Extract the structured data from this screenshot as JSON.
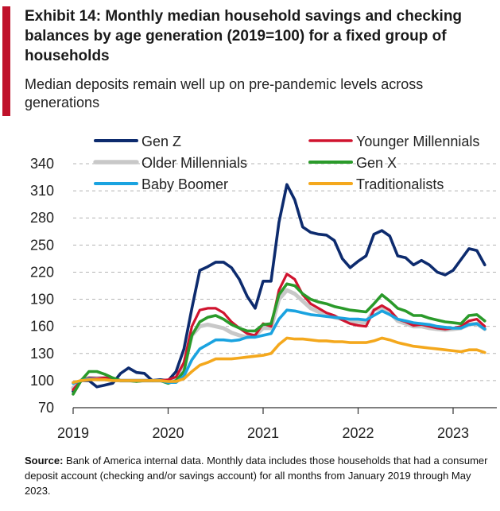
{
  "title": "Exhibit 14: Monthly median household savings and checking balances by age generation (2019=100)  for a fixed group of households",
  "subtitle": "Median deposits remain well up on pre-pandemic levels across generations",
  "source": {
    "label": "Source:",
    "text": "Bank of America internal data. Monthly data includes those households  that had a consumer deposit account (checking and/or savings account) for all months from January 2019 through May 2023."
  },
  "chart_data": {
    "type": "line",
    "x_ticks": [
      "2019",
      "2020",
      "2021",
      "2022",
      "2023"
    ],
    "y_ticks": [
      70,
      100,
      130,
      160,
      190,
      220,
      250,
      280,
      310,
      340
    ],
    "ylim": [
      70,
      340
    ],
    "xlim": [
      "2019-01",
      "2023-05"
    ],
    "grid": "horizontal-dashed",
    "legend_position": "top",
    "series": [
      {
        "name": "Gen Z",
        "color": "#0d2b6e",
        "width": 3.6,
        "x": [
          "2019-01",
          "2019-02",
          "2019-03",
          "2019-04",
          "2019-05",
          "2019-06",
          "2019-07",
          "2019-08",
          "2019-09",
          "2019-10",
          "2019-11",
          "2019-12",
          "2020-01",
          "2020-02",
          "2020-03",
          "2020-04",
          "2020-05",
          "2020-06",
          "2020-07",
          "2020-08",
          "2020-09",
          "2020-10",
          "2020-11",
          "2020-12",
          "2021-01",
          "2021-02",
          "2021-03",
          "2021-04",
          "2021-05",
          "2021-06",
          "2021-07",
          "2021-08",
          "2021-09",
          "2021-10",
          "2021-11",
          "2021-12",
          "2022-01",
          "2022-02",
          "2022-03",
          "2022-04",
          "2022-05",
          "2022-06",
          "2022-07",
          "2022-08",
          "2022-09",
          "2022-10",
          "2022-11",
          "2022-12",
          "2023-01",
          "2023-02",
          "2023-03",
          "2023-04",
          "2023-05"
        ],
        "values": [
          88,
          100,
          100,
          93,
          95,
          97,
          108,
          114,
          109,
          108,
          100,
          101,
          100,
          110,
          135,
          180,
          222,
          226,
          231,
          231,
          225,
          212,
          193,
          180,
          210,
          210,
          275,
          317,
          300,
          270,
          264,
          262,
          261,
          255,
          235,
          225,
          232,
          238,
          262,
          266,
          260,
          238,
          236,
          228,
          233,
          228,
          220,
          217,
          222,
          234,
          246,
          244,
          228
        ]
      },
      {
        "name": "Younger Millennials",
        "color": "#d0142f",
        "width": 3.2,
        "x": [
          "2019-01",
          "2019-02",
          "2019-03",
          "2019-04",
          "2019-05",
          "2019-06",
          "2019-07",
          "2019-08",
          "2019-09",
          "2019-10",
          "2019-11",
          "2019-12",
          "2020-01",
          "2020-02",
          "2020-03",
          "2020-04",
          "2020-05",
          "2020-06",
          "2020-07",
          "2020-08",
          "2020-09",
          "2020-10",
          "2020-11",
          "2020-12",
          "2021-01",
          "2021-02",
          "2021-03",
          "2021-04",
          "2021-05",
          "2021-06",
          "2021-07",
          "2021-08",
          "2021-09",
          "2021-10",
          "2021-11",
          "2021-12",
          "2022-01",
          "2022-02",
          "2022-03",
          "2022-04",
          "2022-05",
          "2022-06",
          "2022-07",
          "2022-08",
          "2022-09",
          "2022-10",
          "2022-11",
          "2022-12",
          "2023-01",
          "2023-02",
          "2023-03",
          "2023-04",
          "2023-05"
        ],
        "values": [
          90,
          100,
          103,
          102,
          103,
          103,
          100,
          100,
          99,
          100,
          100,
          100,
          101,
          104,
          120,
          160,
          178,
          180,
          180,
          175,
          165,
          158,
          152,
          150,
          163,
          160,
          200,
          218,
          212,
          195,
          185,
          180,
          175,
          172,
          167,
          163,
          161,
          160,
          178,
          183,
          178,
          168,
          165,
          161,
          162,
          160,
          158,
          157,
          158,
          160,
          166,
          168,
          160
        ]
      },
      {
        "name": "Older Millennials",
        "color": "#c8c8c8",
        "width": 5,
        "x": [
          "2019-01",
          "2019-02",
          "2019-03",
          "2019-04",
          "2019-05",
          "2019-06",
          "2019-07",
          "2019-08",
          "2019-09",
          "2019-10",
          "2019-11",
          "2019-12",
          "2020-01",
          "2020-02",
          "2020-03",
          "2020-04",
          "2020-05",
          "2020-06",
          "2020-07",
          "2020-08",
          "2020-09",
          "2020-10",
          "2020-11",
          "2020-12",
          "2021-01",
          "2021-02",
          "2021-03",
          "2021-04",
          "2021-05",
          "2021-06",
          "2021-07",
          "2021-08",
          "2021-09",
          "2021-10",
          "2021-11",
          "2021-12",
          "2022-01",
          "2022-02",
          "2022-03",
          "2022-04",
          "2022-05",
          "2022-06",
          "2022-07",
          "2022-08",
          "2022-09",
          "2022-10",
          "2022-11",
          "2022-12",
          "2023-01",
          "2023-02",
          "2023-03",
          "2023-04",
          "2023-05"
        ],
        "values": [
          92,
          100,
          103,
          103,
          103,
          102,
          100,
          100,
          100,
          100,
          100,
          100,
          100,
          103,
          118,
          150,
          160,
          162,
          160,
          158,
          153,
          150,
          148,
          150,
          158,
          158,
          190,
          200,
          196,
          188,
          180,
          176,
          173,
          170,
          168,
          166,
          165,
          164,
          178,
          181,
          175,
          166,
          163,
          160,
          160,
          158,
          157,
          156,
          157,
          158,
          162,
          163,
          157
        ]
      },
      {
        "name": "Gen X",
        "color": "#2a9a2a",
        "width": 3.6,
        "x": [
          "2019-01",
          "2019-02",
          "2019-03",
          "2019-04",
          "2019-05",
          "2019-06",
          "2019-07",
          "2019-08",
          "2019-09",
          "2019-10",
          "2019-11",
          "2019-12",
          "2020-01",
          "2020-02",
          "2020-03",
          "2020-04",
          "2020-05",
          "2020-06",
          "2020-07",
          "2020-08",
          "2020-09",
          "2020-10",
          "2020-11",
          "2020-12",
          "2021-01",
          "2021-02",
          "2021-03",
          "2021-04",
          "2021-05",
          "2021-06",
          "2021-07",
          "2021-08",
          "2021-09",
          "2021-10",
          "2021-11",
          "2021-12",
          "2022-01",
          "2022-02",
          "2022-03",
          "2022-04",
          "2022-05",
          "2022-06",
          "2022-07",
          "2022-08",
          "2022-09",
          "2022-10",
          "2022-11",
          "2022-12",
          "2023-01",
          "2023-02",
          "2023-03",
          "2023-04",
          "2023-05"
        ],
        "values": [
          85,
          100,
          110,
          110,
          107,
          103,
          100,
          100,
          99,
          100,
          100,
          100,
          97,
          100,
          110,
          150,
          165,
          170,
          172,
          168,
          162,
          158,
          155,
          155,
          162,
          163,
          195,
          207,
          205,
          196,
          190,
          187,
          185,
          182,
          180,
          178,
          177,
          176,
          185,
          195,
          188,
          180,
          177,
          172,
          172,
          169,
          167,
          165,
          164,
          163,
          172,
          173,
          166
        ]
      },
      {
        "name": "Baby Boomer",
        "color": "#1aa3e0",
        "width": 3.6,
        "x": [
          "2019-01",
          "2019-02",
          "2019-03",
          "2019-04",
          "2019-05",
          "2019-06",
          "2019-07",
          "2019-08",
          "2019-09",
          "2019-10",
          "2019-11",
          "2019-12",
          "2020-01",
          "2020-02",
          "2020-03",
          "2020-04",
          "2020-05",
          "2020-06",
          "2020-07",
          "2020-08",
          "2020-09",
          "2020-10",
          "2020-11",
          "2020-12",
          "2021-01",
          "2021-02",
          "2021-03",
          "2021-04",
          "2021-05",
          "2021-06",
          "2021-07",
          "2021-08",
          "2021-09",
          "2021-10",
          "2021-11",
          "2021-12",
          "2022-01",
          "2022-02",
          "2022-03",
          "2022-04",
          "2022-05",
          "2022-06",
          "2022-07",
          "2022-08",
          "2022-09",
          "2022-10",
          "2022-11",
          "2022-12",
          "2023-01",
          "2023-02",
          "2023-03",
          "2023-04",
          "2023-05"
        ],
        "values": [
          97,
          100,
          102,
          101,
          101,
          100,
          100,
          100,
          100,
          100,
          100,
          100,
          98,
          98,
          105,
          123,
          135,
          140,
          145,
          145,
          144,
          145,
          148,
          148,
          150,
          152,
          168,
          178,
          177,
          175,
          173,
          172,
          171,
          170,
          169,
          168,
          168,
          167,
          172,
          177,
          173,
          168,
          166,
          164,
          163,
          162,
          160,
          159,
          158,
          158,
          162,
          163,
          157
        ]
      },
      {
        "name": "Traditionalists",
        "color": "#f4a81d",
        "width": 3.6,
        "x": [
          "2019-01",
          "2019-02",
          "2019-03",
          "2019-04",
          "2019-05",
          "2019-06",
          "2019-07",
          "2019-08",
          "2019-09",
          "2019-10",
          "2019-11",
          "2019-12",
          "2020-01",
          "2020-02",
          "2020-03",
          "2020-04",
          "2020-05",
          "2020-06",
          "2020-07",
          "2020-08",
          "2020-09",
          "2020-10",
          "2020-11",
          "2020-12",
          "2021-01",
          "2021-02",
          "2021-03",
          "2021-04",
          "2021-05",
          "2021-06",
          "2021-07",
          "2021-08",
          "2021-09",
          "2021-10",
          "2021-11",
          "2021-12",
          "2022-01",
          "2022-02",
          "2022-03",
          "2022-04",
          "2022-05",
          "2022-06",
          "2022-07",
          "2022-08",
          "2022-09",
          "2022-10",
          "2022-11",
          "2022-12",
          "2023-01",
          "2023-02",
          "2023-03",
          "2023-04",
          "2023-05"
        ],
        "values": [
          98,
          100,
          101,
          101,
          101,
          100,
          100,
          100,
          100,
          100,
          100,
          100,
          99,
          99,
          102,
          110,
          117,
          120,
          124,
          124,
          124,
          125,
          126,
          127,
          128,
          130,
          140,
          147,
          146,
          146,
          145,
          144,
          144,
          143,
          143,
          142,
          142,
          142,
          144,
          147,
          145,
          142,
          140,
          138,
          137,
          136,
          135,
          134,
          133,
          132,
          134,
          134,
          131
        ]
      }
    ]
  }
}
